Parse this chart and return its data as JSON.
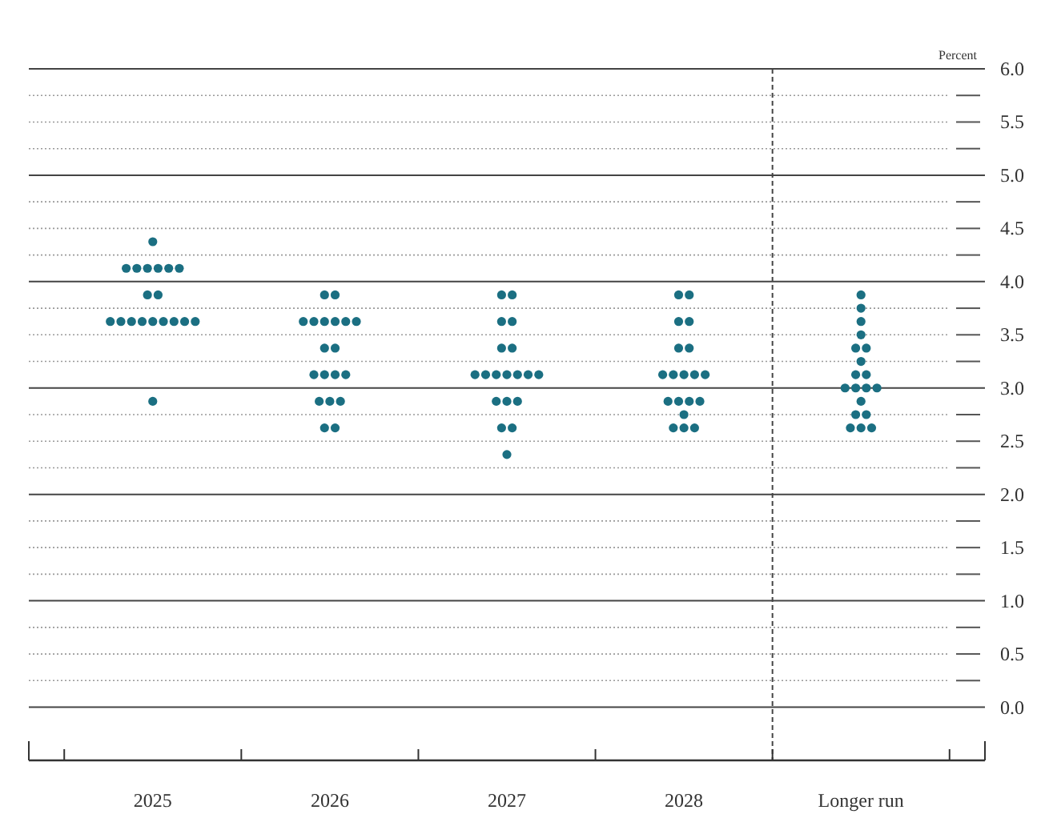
{
  "chart_data": {
    "type": "scatter",
    "ylabel": "Percent",
    "xlim": [
      2024.3,
      2029.7
    ],
    "xticks": [
      {
        "value": 2024.5,
        "label": null
      },
      {
        "value": 2025,
        "label": "2025"
      },
      {
        "value": 2025.5,
        "label": null
      },
      {
        "value": 2026,
        "label": "2026"
      },
      {
        "value": 2026.5,
        "label": null
      },
      {
        "value": 2027,
        "label": "2027"
      },
      {
        "value": 2027.5,
        "label": null
      },
      {
        "value": 2028,
        "label": "2028"
      },
      {
        "value": 2028.5,
        "label": null
      },
      {
        "value": 2029,
        "label": "Longer run"
      },
      {
        "value": 2029.5,
        "label": null
      }
    ],
    "ylim": [
      -0.5,
      6.0
    ],
    "yticks": [
      {
        "value": 0,
        "label": "0.0"
      },
      {
        "value": 0.25,
        "label": null
      },
      {
        "value": 0.5,
        "label": "0.5"
      },
      {
        "value": 0.75,
        "label": null
      },
      {
        "value": 1,
        "label": "1.0"
      },
      {
        "value": 1.25,
        "label": null
      },
      {
        "value": 1.5,
        "label": "1.5"
      },
      {
        "value": 1.75,
        "label": null
      },
      {
        "value": 2,
        "label": "2.0"
      },
      {
        "value": 2.25,
        "label": null
      },
      {
        "value": 2.5,
        "label": "2.5"
      },
      {
        "value": 2.75,
        "label": null
      },
      {
        "value": 3,
        "label": "3.0"
      },
      {
        "value": 3.25,
        "label": null
      },
      {
        "value": 3.5,
        "label": "3.5"
      },
      {
        "value": 3.75,
        "label": null
      },
      {
        "value": 4,
        "label": "4.0"
      },
      {
        "value": 4.25,
        "label": null
      },
      {
        "value": 4.5,
        "label": "4.5"
      },
      {
        "value": 4.75,
        "label": null
      },
      {
        "value": 5,
        "label": "5.0"
      },
      {
        "value": 5.25,
        "label": null
      },
      {
        "value": 5.5,
        "label": "5.5"
      },
      {
        "value": 5.75,
        "label": null
      },
      {
        "value": 6,
        "label": "6.0"
      }
    ],
    "grid": "y",
    "marker": "circle",
    "ref_lines": [
      {
        "axis": "x",
        "value": 2028.5,
        "line_style": "dashed",
        "color": "#444444"
      }
    ],
    "series": [
      {
        "color": "#1b6f82",
        "x": [
          2025,
          2024.85,
          2024.91,
          2024.97,
          2025.03,
          2025.09,
          2025.15,
          2024.97,
          2025.03,
          2024.76,
          2024.82,
          2024.88,
          2024.94,
          2025,
          2025.06,
          2025.12,
          2025.18,
          2025.24,
          2025,
          2025.97,
          2026.03,
          2025.85,
          2025.91,
          2025.97,
          2026.03,
          2026.09,
          2026.15,
          2025.97,
          2026.03,
          2025.91,
          2025.97,
          2026.03,
          2026.09,
          2025.94,
          2026,
          2026.06,
          2025.97,
          2026.03,
          2026.97,
          2027.03,
          2026.97,
          2027.03,
          2026.97,
          2027.03,
          2026.82,
          2026.88,
          2026.94,
          2027,
          2027.06,
          2027.12,
          2027.18,
          2026.94,
          2027,
          2027.06,
          2026.97,
          2027.03,
          2027,
          2027.97,
          2028.03,
          2027.97,
          2028.03,
          2027.97,
          2028.03,
          2027.88,
          2027.94,
          2028,
          2028.06,
          2028.12,
          2027.91,
          2027.97,
          2028.03,
          2028.09,
          2028,
          2027.94,
          2028,
          2028.06,
          2029,
          2029,
          2029,
          2029,
          2028.97,
          2029.03,
          2029,
          2028.97,
          2029.03,
          2028.91,
          2028.97,
          2029.03,
          2029.09,
          2029,
          2028.97,
          2029.03,
          2028.94,
          2029,
          2029.06
        ],
        "values": [
          4.375,
          4.125,
          4.125,
          4.125,
          4.125,
          4.125,
          4.125,
          3.875,
          3.875,
          3.625,
          3.625,
          3.625,
          3.625,
          3.625,
          3.625,
          3.625,
          3.625,
          3.625,
          2.875,
          3.875,
          3.875,
          3.625,
          3.625,
          3.625,
          3.625,
          3.625,
          3.625,
          3.375,
          3.375,
          3.125,
          3.125,
          3.125,
          3.125,
          2.875,
          2.875,
          2.875,
          2.625,
          2.625,
          3.875,
          3.875,
          3.625,
          3.625,
          3.375,
          3.375,
          3.125,
          3.125,
          3.125,
          3.125,
          3.125,
          3.125,
          3.125,
          2.875,
          2.875,
          2.875,
          2.625,
          2.625,
          2.375,
          3.875,
          3.875,
          3.625,
          3.625,
          3.375,
          3.375,
          3.125,
          3.125,
          3.125,
          3.125,
          3.125,
          2.875,
          2.875,
          2.875,
          2.875,
          2.75,
          2.625,
          2.625,
          2.625,
          3.875,
          3.75,
          3.625,
          3.5,
          3.375,
          3.375,
          3.25,
          3.125,
          3.125,
          3.0,
          3.0,
          3.0,
          3.0,
          2.875,
          2.75,
          2.75,
          2.625,
          2.625,
          2.625
        ]
      }
    ]
  }
}
